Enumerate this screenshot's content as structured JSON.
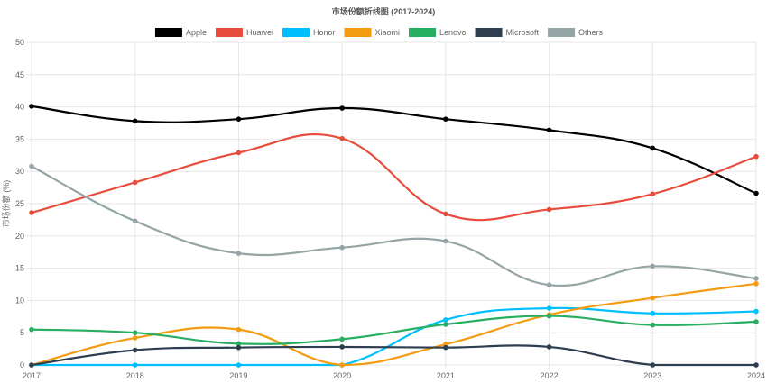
{
  "chart_data": {
    "type": "line",
    "title": "市场份额折线图 (2017-2024)",
    "xlabel": "",
    "ylabel": "市场份额 (%)",
    "ylim": [
      0,
      50
    ],
    "yticks": [
      0,
      5,
      10,
      15,
      20,
      25,
      30,
      35,
      40,
      45,
      50
    ],
    "grid": true,
    "legend_position": "top-center",
    "categories": [
      "2017",
      "2018",
      "2019",
      "2020",
      "2021",
      "2022",
      "2023",
      "2024"
    ],
    "series": [
      {
        "name": "Apple",
        "color": "#000000",
        "values": [
          40.1,
          37.8,
          38.1,
          39.8,
          38.1,
          36.4,
          33.6,
          26.6
        ]
      },
      {
        "name": "Huawei",
        "color": "#e74c3c",
        "values": [
          23.6,
          28.3,
          32.9,
          35.1,
          23.4,
          24.1,
          26.5,
          32.3
        ]
      },
      {
        "name": "Honor",
        "color": "#00bfff",
        "values": [
          0,
          0,
          0,
          0,
          7.0,
          8.8,
          8.0,
          8.3
        ]
      },
      {
        "name": "Xiaomi",
        "color": "#f39c12",
        "values": [
          0,
          4.2,
          5.5,
          0,
          3.2,
          7.8,
          10.4,
          12.6
        ]
      },
      {
        "name": "Lenovo",
        "color": "#27ae60",
        "values": [
          5.5,
          5.0,
          3.3,
          4.0,
          6.3,
          7.6,
          6.2,
          6.7
        ]
      },
      {
        "name": "Microsoft",
        "color": "#2c3e50",
        "values": [
          0,
          2.3,
          2.7,
          2.8,
          2.7,
          2.8,
          0,
          0
        ]
      },
      {
        "name": "Others",
        "color": "#95a5a6",
        "values": [
          30.8,
          22.3,
          17.3,
          18.2,
          19.2,
          12.4,
          15.3,
          13.4
        ]
      }
    ]
  }
}
